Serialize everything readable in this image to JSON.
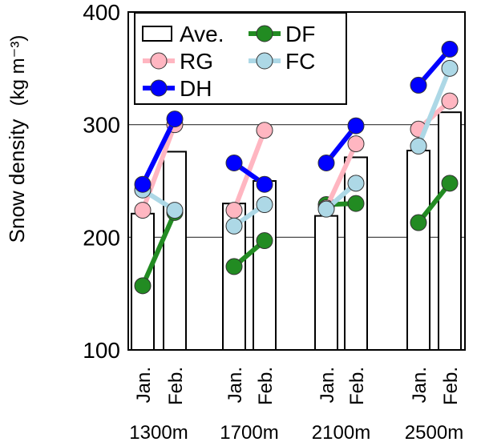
{
  "chart_data": {
    "type": "bar",
    "ylabel": "Snow density",
    "yunit": "(kg m⁻³)",
    "ylim": [
      100,
      400
    ],
    "yticks": [
      100,
      200,
      300,
      400
    ],
    "grid_lines": [
      200,
      300
    ],
    "legend_placement": "top-left",
    "groups": [
      "1300m",
      "1700m",
      "2100m",
      "2500m"
    ],
    "months": [
      "Jan.",
      "Feb."
    ],
    "bars": {
      "name": "Ave.",
      "values": [
        [
          221,
          276
        ],
        [
          230,
          250
        ],
        [
          219,
          271
        ],
        [
          277,
          311
        ]
      ]
    },
    "series": [
      {
        "name": "DF",
        "color": "#228B22",
        "values": [
          [
            157,
            222
          ],
          [
            174,
            197
          ],
          [
            229,
            230
          ],
          [
            213,
            248
          ]
        ]
      },
      {
        "name": "RG",
        "color": "#FFB6C1",
        "values": [
          [
            224,
            300
          ],
          [
            224,
            295
          ],
          [
            226,
            283
          ],
          [
            296,
            321
          ]
        ]
      },
      {
        "name": "FC",
        "color": "#ADD8E6",
        "values": [
          [
            242,
            224
          ],
          [
            210,
            229
          ],
          [
            225,
            248
          ],
          [
            281,
            350
          ]
        ]
      },
      {
        "name": "DH",
        "color": "#0000FF",
        "values": [
          [
            247,
            305
          ],
          [
            266,
            247
          ],
          [
            266,
            299
          ],
          [
            335,
            367
          ]
        ]
      }
    ]
  }
}
